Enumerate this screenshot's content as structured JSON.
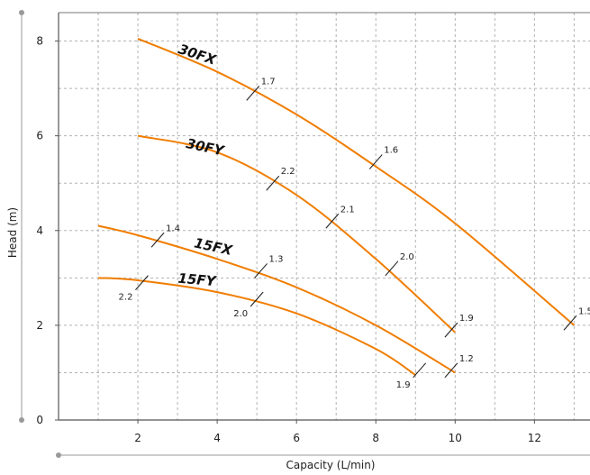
{
  "chart_data": {
    "type": "line",
    "title": "",
    "xlabel": "Capacity (L/min)",
    "ylabel": "Head (m)",
    "xlim": [
      0,
      13.4
    ],
    "ylim": [
      0,
      8.6
    ],
    "xticks": [
      2,
      4,
      6,
      8,
      10,
      12
    ],
    "xtick_labels": [
      "2",
      "4",
      "6",
      "8",
      "10",
      "12"
    ],
    "yticks": [
      0,
      2,
      4,
      6,
      8
    ],
    "ytick_labels": [
      "0",
      "2",
      "4",
      "6",
      "8"
    ],
    "grid": true,
    "grid_x_step": 1,
    "grid_y_step": 1,
    "line_color": "#F07D00",
    "grid_color": "#b3b3b3",
    "series": [
      {
        "name": "30FX",
        "x": [
          2,
          4,
          6,
          8,
          10,
          13
        ],
        "y": [
          8.05,
          7.35,
          6.45,
          5.35,
          4.15,
          2.0
        ],
        "markers": [
          {
            "x": 4.9,
            "y": 6.9,
            "label": "1.7"
          },
          {
            "x": 8.0,
            "y": 5.45,
            "label": "1.6"
          },
          {
            "x": 12.9,
            "y": 2.05,
            "label": "1.5"
          }
        ]
      },
      {
        "name": "30FY",
        "x": [
          2,
          4,
          6,
          8,
          10
        ],
        "y": [
          6.0,
          5.65,
          4.75,
          3.4,
          1.85
        ],
        "markers": [
          {
            "x": 5.4,
            "y": 5.0,
            "label": "2.2"
          },
          {
            "x": 6.9,
            "y": 4.2,
            "label": "2.1"
          },
          {
            "x": 8.4,
            "y": 3.2,
            "label": "2.0"
          },
          {
            "x": 9.9,
            "y": 1.9,
            "label": "1.9"
          }
        ]
      },
      {
        "name": "15FX",
        "x": [
          1,
          2,
          4,
          6,
          8,
          10
        ],
        "y": [
          4.1,
          3.9,
          3.4,
          2.8,
          2.0,
          1.0
        ],
        "markers": [
          {
            "x": 2.5,
            "y": 3.8,
            "label": "1.4"
          },
          {
            "x": 5.1,
            "y": 3.15,
            "label": "1.3"
          },
          {
            "x": 9.9,
            "y": 1.05,
            "label": "1.2"
          }
        ]
      },
      {
        "name": "15FY",
        "x": [
          1,
          2,
          4,
          6,
          8,
          9
        ],
        "y": [
          3.0,
          2.95,
          2.7,
          2.25,
          1.5,
          0.95
        ],
        "markers": [
          {
            "x": 2.1,
            "y": 2.9,
            "label": "2.2"
          },
          {
            "x": 5.0,
            "y": 2.55,
            "label": "2.0"
          },
          {
            "x": 9.1,
            "y": 1.05,
            "label": "1.9"
          }
        ]
      }
    ]
  }
}
